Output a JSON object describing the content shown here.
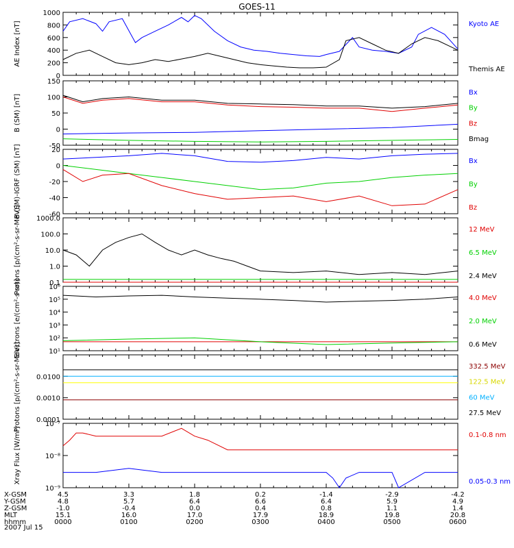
{
  "figure": {
    "title": "GOES-11",
    "date_label": "2007 Jul 15"
  },
  "colors": {
    "black": "#000000",
    "blue": "#0000ff",
    "red": "#e00000",
    "green": "#00d000",
    "darkred": "#8b0000",
    "cyan": "#00b0ff",
    "yellow": "#ffff00"
  },
  "chart_data": [
    {
      "type": "line",
      "ylabel": "AE Index [nT]",
      "yscale": "linear",
      "ylim": [
        0,
        1000
      ],
      "yticks": [
        0,
        200,
        400,
        600,
        800,
        1000
      ],
      "ytick_labels": [
        "0",
        "200",
        "400",
        "600",
        "800",
        "1000"
      ],
      "xlim": [
        0,
        6
      ],
      "series": [
        {
          "name": "Kyoto AE",
          "color": "#0000ff",
          "x": [
            0.0,
            0.1,
            0.3,
            0.5,
            0.6,
            0.7,
            0.9,
            1.1,
            1.2,
            1.3,
            1.4,
            1.6,
            1.8,
            1.9,
            2.0,
            2.1,
            2.2,
            2.3,
            2.5,
            2.7,
            2.9,
            3.1,
            3.3,
            3.5,
            3.7,
            3.9,
            4.0,
            4.2,
            4.4,
            4.5,
            4.7,
            4.9,
            5.1,
            5.3,
            5.4,
            5.6,
            5.8,
            6.0
          ],
          "y": [
            700,
            850,
            900,
            820,
            700,
            850,
            900,
            520,
            600,
            650,
            700,
            800,
            920,
            850,
            950,
            900,
            800,
            700,
            550,
            450,
            400,
            380,
            350,
            330,
            310,
            300,
            330,
            380,
            600,
            450,
            400,
            380,
            350,
            450,
            650,
            760,
            650,
            420
          ]
        },
        {
          "name": "Themis AE",
          "color": "#000000",
          "x": [
            0.0,
            0.2,
            0.4,
            0.6,
            0.8,
            1.0,
            1.2,
            1.4,
            1.6,
            1.8,
            2.0,
            2.2,
            2.4,
            2.6,
            2.8,
            3.0,
            3.2,
            3.4,
            3.6,
            3.8,
            4.0,
            4.2,
            4.3,
            4.5,
            4.7,
            4.9,
            5.1,
            5.3,
            5.5,
            5.7,
            5.9,
            6.0
          ],
          "y": [
            250,
            350,
            400,
            300,
            200,
            170,
            200,
            250,
            220,
            260,
            300,
            350,
            300,
            250,
            200,
            170,
            150,
            130,
            120,
            120,
            130,
            250,
            550,
            600,
            500,
            400,
            350,
            500,
            600,
            550,
            450,
            400
          ]
        }
      ]
    },
    {
      "type": "line",
      "ylabel": "B (SM) [nT]",
      "yscale": "linear",
      "ylim": [
        -50,
        150
      ],
      "yticks": [
        -50,
        0,
        50,
        100,
        150
      ],
      "ytick_labels": [
        "-50",
        "0",
        "50",
        "100",
        "150"
      ],
      "xlim": [
        0,
        6
      ],
      "series": [
        {
          "name": "Bx",
          "color": "#0000ff",
          "x": [
            0,
            1,
            2,
            3,
            4,
            5,
            6
          ],
          "y": [
            -15,
            -12,
            -10,
            -5,
            0,
            5,
            15
          ]
        },
        {
          "name": "By",
          "color": "#00d000",
          "x": [
            0,
            1,
            2,
            3,
            4,
            5,
            6
          ],
          "y": [
            -30,
            -35,
            -38,
            -40,
            -38,
            -35,
            -32
          ]
        },
        {
          "name": "Bz",
          "color": "#e00000",
          "x": [
            0,
            0.3,
            0.6,
            1.0,
            1.5,
            2.0,
            2.5,
            3.0,
            3.5,
            4.0,
            4.5,
            5.0,
            5.5,
            6.0
          ],
          "y": [
            100,
            80,
            90,
            95,
            85,
            85,
            75,
            70,
            68,
            65,
            65,
            55,
            65,
            75
          ]
        },
        {
          "name": "Bmag",
          "color": "#000000",
          "x": [
            0,
            0.3,
            0.6,
            1.0,
            1.5,
            2.0,
            2.5,
            3.0,
            3.5,
            4.0,
            4.5,
            5.0,
            5.5,
            6.0
          ],
          "y": [
            105,
            85,
            95,
            100,
            90,
            90,
            80,
            78,
            76,
            72,
            72,
            65,
            70,
            80
          ]
        }
      ]
    },
    {
      "type": "line",
      "ylabel": "B (SM)-IGRF (SM) [nT]",
      "yscale": "linear",
      "ylim": [
        -60,
        20
      ],
      "yticks": [
        -60,
        -40,
        -20,
        0,
        20
      ],
      "ytick_labels": [
        "-60",
        "-40",
        "-20",
        "0",
        "20"
      ],
      "xlim": [
        0,
        6
      ],
      "series": [
        {
          "name": "Bx",
          "color": "#0000ff",
          "x": [
            0,
            0.5,
            1.0,
            1.5,
            2.0,
            2.5,
            3.0,
            3.5,
            4.0,
            4.5,
            5.0,
            5.5,
            6.0
          ],
          "y": [
            8,
            10,
            12,
            15,
            12,
            5,
            4,
            6,
            10,
            8,
            12,
            14,
            15
          ]
        },
        {
          "name": "By",
          "color": "#00d000",
          "x": [
            0,
            0.5,
            1.0,
            1.5,
            2.0,
            2.5,
            3.0,
            3.5,
            4.0,
            4.5,
            5.0,
            5.5,
            6.0
          ],
          "y": [
            0,
            -5,
            -10,
            -15,
            -20,
            -25,
            -30,
            -28,
            -22,
            -20,
            -15,
            -12,
            -10
          ]
        },
        {
          "name": "Bz",
          "color": "#e00000",
          "x": [
            0,
            0.3,
            0.6,
            1.0,
            1.5,
            2.0,
            2.5,
            3.0,
            3.5,
            4.0,
            4.5,
            5.0,
            5.5,
            6.0
          ],
          "y": [
            -5,
            -20,
            -12,
            -10,
            -25,
            -35,
            -42,
            -40,
            -38,
            -45,
            -38,
            -50,
            -48,
            -30
          ]
        }
      ]
    },
    {
      "type": "line",
      "ylabel": "Protons [p/(cm²-s-sr-MeV)]",
      "yscale": "log",
      "ylim": [
        0.1,
        1000
      ],
      "yticks": [
        0.1,
        1,
        10,
        100,
        1000
      ],
      "ytick_labels": [
        "0.1",
        "1.0",
        "10.0",
        "100.0",
        "1000.0"
      ],
      "xlim": [
        0,
        6
      ],
      "series": [
        {
          "name": "12 MeV",
          "color": "#e00000",
          "x": [
            0,
            6
          ],
          "y": [
            0.1,
            0.1
          ]
        },
        {
          "name": "6.5 MeV",
          "color": "#00d000",
          "x": [
            0,
            6
          ],
          "y": [
            0.15,
            0.15
          ]
        },
        {
          "name": "2.4 MeV",
          "color": "#000000",
          "x": [
            0.0,
            0.2,
            0.4,
            0.6,
            0.8,
            1.0,
            1.2,
            1.4,
            1.6,
            1.8,
            2.0,
            2.2,
            2.4,
            2.6,
            2.8,
            3.0,
            3.5,
            4.0,
            4.5,
            5.0,
            5.5,
            6.0
          ],
          "y": [
            10,
            5,
            1,
            10,
            30,
            60,
            100,
            30,
            10,
            5,
            10,
            5,
            3,
            2,
            1,
            0.5,
            0.4,
            0.5,
            0.3,
            0.4,
            0.3,
            0.5
          ]
        }
      ]
    },
    {
      "type": "line",
      "ylabel": "Electrons [e/(cm²-s-sr)]",
      "yscale": "log",
      "ylim": [
        10,
        1000000
      ],
      "yticks": [
        10,
        100,
        1000,
        10000,
        100000,
        1000000
      ],
      "ytick_labels": [
        "10¹",
        "10²",
        "10³",
        "10⁴",
        "10⁵",
        "10⁶"
      ],
      "xlim": [
        0,
        6
      ],
      "series": [
        {
          "name": "4.0 MeV",
          "color": "#e00000",
          "x": [
            0,
            6
          ],
          "y": [
            50,
            50
          ]
        },
        {
          "name": "2.0 MeV",
          "color": "#00d000",
          "x": [
            0,
            1,
            2,
            3,
            4,
            5,
            6
          ],
          "y": [
            60,
            80,
            100,
            50,
            30,
            40,
            50
          ]
        },
        {
          "name": "0.6 MeV",
          "color": "#000000",
          "x": [
            0,
            0.5,
            1.0,
            1.5,
            2.0,
            2.5,
            3.0,
            3.5,
            4.0,
            4.5,
            5.0,
            5.5,
            6.0
          ],
          "y": [
            200000,
            150000,
            180000,
            200000,
            150000,
            120000,
            100000,
            80000,
            60000,
            70000,
            80000,
            100000,
            150000
          ]
        }
      ]
    },
    {
      "type": "line",
      "ylabel": "Protons [p/(cm²-s-sr-MeV)]",
      "yscale": "log",
      "ylim": [
        0.0001,
        0.1
      ],
      "yticks": [
        0.0001,
        0.001,
        0.01
      ],
      "ytick_labels": [
        "0.0001",
        "0.0010",
        "0.0100"
      ],
      "xlim": [
        0,
        6
      ],
      "series": [
        {
          "name": "332.5 MeV",
          "color": "#8b0000",
          "x": [
            0,
            6
          ],
          "y": [
            0.0008,
            0.0008
          ]
        },
        {
          "name": "122.5 MeV",
          "color": "#ffff00",
          "x": [
            0,
            6
          ],
          "y": [
            0.005,
            0.005
          ]
        },
        {
          "name": "60 MeV",
          "color": "#00b0ff",
          "x": [
            0,
            6
          ],
          "y": [
            0.01,
            0.01
          ]
        },
        {
          "name": "27.5 MeV",
          "color": "#000000",
          "x": [
            0,
            6
          ],
          "y": [
            0.02,
            0.02
          ]
        }
      ]
    },
    {
      "type": "line",
      "ylabel": "Xray Flux [W/m²]",
      "yscale": "log",
      "ylim": [
        1e-09,
        1e-07
      ],
      "yticks": [
        1e-09,
        1e-08,
        1e-07
      ],
      "ytick_labels": [
        "10⁻⁹",
        "10⁻⁸",
        "10⁻⁷"
      ],
      "xlim": [
        0,
        6
      ],
      "series": [
        {
          "name": "0.1-0.8 nm",
          "color": "#e00000",
          "x": [
            0.0,
            0.1,
            0.2,
            0.3,
            0.5,
            1.0,
            1.5,
            1.8,
            2.0,
            2.2,
            2.5,
            3.0,
            3.5,
            4.0,
            4.5,
            5.0,
            5.5,
            6.0
          ],
          "y": [
            2e-08,
            3e-08,
            5e-08,
            5e-08,
            4e-08,
            4e-08,
            4e-08,
            7e-08,
            4e-08,
            3e-08,
            1.5e-08,
            1.5e-08,
            1.5e-08,
            1.5e-08,
            1.5e-08,
            1.5e-08,
            1.5e-08,
            1.5e-08
          ]
        },
        {
          "name": "0.05-0.3 nm",
          "color": "#0000ff",
          "x": [
            0.0,
            0.5,
            1.0,
            1.5,
            2.0,
            2.5,
            3.0,
            3.5,
            4.0,
            4.1,
            4.2,
            4.3,
            4.5,
            5.0,
            5.1,
            5.5,
            6.0
          ],
          "y": [
            3e-09,
            3e-09,
            4e-09,
            3e-09,
            3e-09,
            3e-09,
            3e-09,
            3e-09,
            3e-09,
            2e-09,
            1e-09,
            2e-09,
            3e-09,
            3e-09,
            1e-09,
            3e-09,
            3e-09
          ]
        }
      ]
    }
  ],
  "x_axis": {
    "rows": [
      {
        "label": "X-GSM",
        "values": [
          "4.5",
          "3.3",
          "1.8",
          "0.2",
          "-1.4",
          "-2.9",
          "-4.2"
        ]
      },
      {
        "label": "Y-GSM",
        "values": [
          "4.8",
          "5.7",
          "6.4",
          "6.6",
          "6.4",
          "5.9",
          "4.9"
        ]
      },
      {
        "label": "Z-GSM",
        "values": [
          "-1.0",
          "-0.4",
          "0.0",
          "0.4",
          "0.8",
          "1.1",
          "1.4"
        ]
      },
      {
        "label": "MLT",
        "values": [
          "15.1",
          "16.0",
          "17.0",
          "17.9",
          "18.9",
          "19.8",
          "20.8"
        ]
      },
      {
        "label": "hhmm",
        "values": [
          "0000",
          "0100",
          "0200",
          "0300",
          "0400",
          "0500",
          "0600"
        ]
      }
    ]
  }
}
